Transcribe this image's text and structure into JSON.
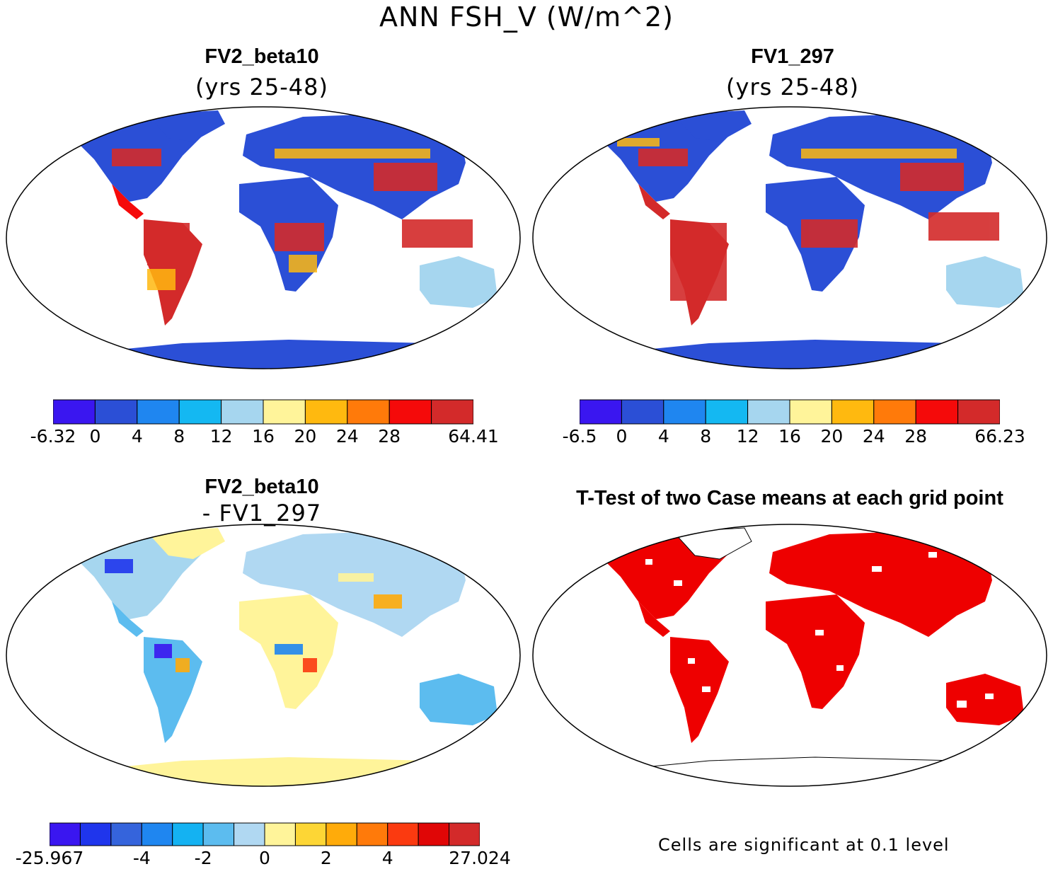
{
  "title": "ANN FSH_V (W/m^2)",
  "colors": {
    "p1": "#3a16f0",
    "p2": "#2b4fd6",
    "p3": "#1f86f0",
    "p4": "#14b8f2",
    "p5": "#a6d6ef",
    "p6": "#fff49a",
    "p7": "#ffb90f",
    "p8": "#ff7a0a",
    "p9": "#f50a0a",
    "p10": "#d32a2a",
    "d1": "#3a16f0",
    "d2": "#1f35ec",
    "d3": "#3564dc",
    "d4": "#1f86f0",
    "d5": "#14b2f2",
    "d6": "#5cbcef",
    "d7": "#b0d8f2",
    "d8": "#fff49a",
    "d9": "#fdd635",
    "d10": "#ffab0a",
    "d11": "#ff7a0a",
    "d12": "#fb3a10",
    "d13": "#e00606",
    "d14": "#d32a2a",
    "sig": "#ee0000"
  },
  "panels": {
    "case1": {
      "title": "FV2_beta10",
      "subtitle": "(yrs 25-48)",
      "colorbar_ticks": [
        "-6.32",
        "0",
        "4",
        "8",
        "12",
        "16",
        "20",
        "24",
        "28",
        "64.41"
      ]
    },
    "case2": {
      "title": "FV1_297",
      "subtitle": "(yrs 25-48)",
      "colorbar_ticks": [
        "-6.5",
        "0",
        "4",
        "8",
        "12",
        "16",
        "20",
        "24",
        "28",
        "66.23"
      ]
    },
    "diff": {
      "title": "FV2_beta10",
      "subtitle": "- FV1_297",
      "colorbar_ticks": [
        "-25.967",
        "-4",
        "-2",
        "0",
        "2",
        "4",
        "27.024"
      ]
    },
    "ttest": {
      "title": "T-Test of two Case means at each grid point",
      "footnote": "Cells are significant at 0.1 level"
    }
  }
}
